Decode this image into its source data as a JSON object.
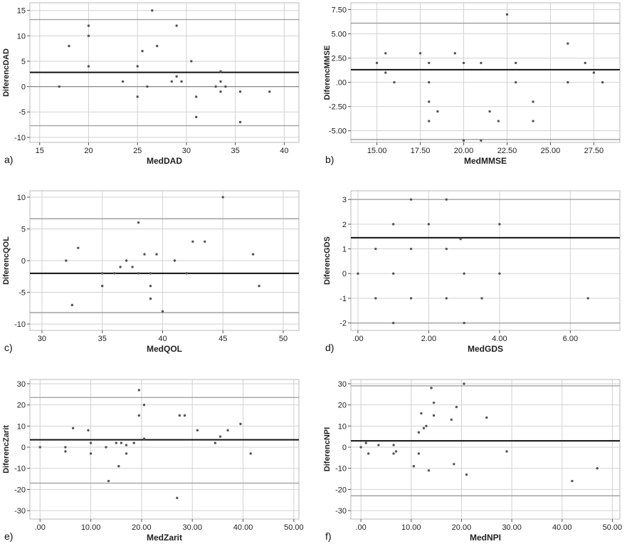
{
  "chart_data": [
    {
      "panel": "a)",
      "type": "scatter",
      "xlabel": "MedDAD",
      "ylabel": "DiferencDAD",
      "xlim": [
        14,
        41.5
      ],
      "ylim": [
        -11,
        16.5
      ],
      "xticks": [
        15,
        20,
        25,
        30,
        35,
        40
      ],
      "xtick_labels": [
        "15",
        "20",
        "25",
        "30",
        "35",
        "40"
      ],
      "yticks": [
        -10,
        -5,
        0,
        5,
        10,
        15
      ],
      "ytick_labels": [
        "-10",
        "-5",
        "0",
        "5",
        "10",
        "15"
      ],
      "zero_line": 0,
      "mean": 2.8,
      "loa_upper": 13.2,
      "loa_lower": -7.7,
      "points": [
        [
          17,
          0
        ],
        [
          18,
          8
        ],
        [
          20,
          12
        ],
        [
          20,
          10
        ],
        [
          20,
          4
        ],
        [
          23.5,
          1
        ],
        [
          25,
          4
        ],
        [
          25,
          -2
        ],
        [
          25.5,
          7
        ],
        [
          26,
          0
        ],
        [
          26.5,
          15
        ],
        [
          27,
          8
        ],
        [
          28.5,
          1
        ],
        [
          29,
          2
        ],
        [
          29,
          12
        ],
        [
          29.5,
          1
        ],
        [
          30.5,
          5
        ],
        [
          31,
          -2
        ],
        [
          31,
          -6
        ],
        [
          33,
          0
        ],
        [
          33.5,
          3
        ],
        [
          33.5,
          1
        ],
        [
          33.5,
          -1
        ],
        [
          34,
          0
        ],
        [
          35.5,
          -1
        ],
        [
          35.5,
          -7
        ],
        [
          38.5,
          -1
        ]
      ]
    },
    {
      "panel": "b)",
      "type": "scatter",
      "xlabel": "MedMMSE",
      "ylabel": "DiferencMMSE",
      "xlim": [
        13.5,
        29
      ],
      "ylim": [
        -6.2,
        8.2
      ],
      "xticks": [
        15,
        17.5,
        20,
        22.5,
        25,
        27.5
      ],
      "xtick_labels": [
        "15.00",
        "17.50",
        "20.00",
        "22.50",
        "25.00",
        "27.50"
      ],
      "yticks": [
        -5,
        -2.5,
        0,
        2.5,
        5,
        7.5
      ],
      "ytick_labels": [
        "-5.00",
        "-2.50",
        ".00",
        "2.50",
        "5.00",
        "7.50"
      ],
      "zero_line": null,
      "mean": 1.3,
      "loa_upper": 6.1,
      "loa_lower": -5.9,
      "points": [
        [
          15,
          2
        ],
        [
          15.5,
          3
        ],
        [
          15.5,
          1
        ],
        [
          16,
          0
        ],
        [
          17.5,
          3
        ],
        [
          18,
          2
        ],
        [
          18,
          0
        ],
        [
          18,
          -2
        ],
        [
          18,
          -4
        ],
        [
          18.5,
          -3
        ],
        [
          19.5,
          3
        ],
        [
          20,
          2
        ],
        [
          20,
          -6
        ],
        [
          21,
          2
        ],
        [
          21,
          -6
        ],
        [
          21.5,
          -3
        ],
        [
          22,
          -4
        ],
        [
          22.5,
          7
        ],
        [
          23,
          2
        ],
        [
          23,
          0
        ],
        [
          24,
          -2
        ],
        [
          24,
          -4
        ],
        [
          26,
          4
        ],
        [
          26,
          0
        ],
        [
          27,
          2
        ],
        [
          27.5,
          1
        ],
        [
          28,
          0
        ]
      ]
    },
    {
      "panel": "c)",
      "type": "scatter",
      "xlabel": "MedQOL",
      "ylabel": "DiferencQOL",
      "xlim": [
        29,
        51.3
      ],
      "ylim": [
        -11,
        11
      ],
      "xticks": [
        30,
        35,
        40,
        45,
        50
      ],
      "xtick_labels": [
        "30",
        "35",
        "40",
        "45",
        "50"
      ],
      "yticks": [
        -10,
        -5,
        0,
        5,
        10
      ],
      "ytick_labels": [
        "-10",
        "-5",
        "0",
        "5",
        "10"
      ],
      "zero_line": null,
      "mean": -2,
      "loa_upper": 6.6,
      "loa_lower": -8.2,
      "points": [
        [
          32,
          0
        ],
        [
          32.5,
          -7
        ],
        [
          33,
          2
        ],
        [
          35,
          -4
        ],
        [
          35,
          -2
        ],
        [
          36,
          -2
        ],
        [
          36.5,
          -1
        ],
        [
          37,
          0
        ],
        [
          37.5,
          -1
        ],
        [
          38,
          6
        ],
        [
          38,
          -2
        ],
        [
          38.5,
          1
        ],
        [
          39,
          -2
        ],
        [
          39,
          -4
        ],
        [
          39,
          -6
        ],
        [
          39.5,
          1
        ],
        [
          40,
          -8
        ],
        [
          41,
          0
        ],
        [
          42,
          -2
        ],
        [
          42.5,
          3
        ],
        [
          43.5,
          3
        ],
        [
          45,
          10
        ],
        [
          47.5,
          1
        ],
        [
          48,
          -4
        ]
      ]
    },
    {
      "panel": "d)",
      "type": "scatter",
      "xlabel": "MedGDS",
      "ylabel": "DiferencGDS",
      "xlim": [
        -0.2,
        7.4
      ],
      "ylim": [
        -2.3,
        3.35
      ],
      "xticks": [
        0,
        2,
        4,
        6
      ],
      "xtick_labels": [
        ".00",
        "2.00",
        "4.00",
        "6.00"
      ],
      "yticks": [
        -2,
        -1,
        0,
        1,
        2,
        3
      ],
      "ytick_labels": [
        "-2",
        "-1",
        "0",
        "1",
        "2",
        "3"
      ],
      "zero_line": null,
      "mean": 1.45,
      "loa_upper": 3,
      "loa_lower": -2,
      "points": [
        [
          0,
          0
        ],
        [
          0.5,
          1
        ],
        [
          0.5,
          -1
        ],
        [
          1,
          2
        ],
        [
          1,
          0
        ],
        [
          1,
          -2
        ],
        [
          1.5,
          3
        ],
        [
          1.5,
          1
        ],
        [
          1.5,
          -1
        ],
        [
          2,
          2
        ],
        [
          2.5,
          3
        ],
        [
          2.5,
          1
        ],
        [
          2.5,
          -1
        ],
        [
          2.9,
          1.4
        ],
        [
          3,
          0
        ],
        [
          3,
          -2
        ],
        [
          3.5,
          -1
        ],
        [
          4,
          2
        ],
        [
          4,
          0
        ],
        [
          6.5,
          -1
        ]
      ]
    },
    {
      "panel": "e)",
      "type": "scatter",
      "xlabel": "MedZarit",
      "ylabel": "DiferencZarit",
      "xlim": [
        -2,
        51
      ],
      "ylim": [
        -34,
        32
      ],
      "xticks": [
        0,
        10,
        20,
        30,
        40,
        50
      ],
      "xtick_labels": [
        ".00",
        "10.00",
        "20.00",
        "30.00",
        "40.00",
        "50.00"
      ],
      "yticks": [
        -30,
        -20,
        -10,
        0,
        10,
        20,
        30
      ],
      "ytick_labels": [
        "-30",
        "-20",
        "-10",
        "0",
        "10",
        "20",
        "30"
      ],
      "zero_line": null,
      "mean": 3.5,
      "loa_upper": 23.5,
      "loa_lower": -17,
      "points": [
        [
          0,
          0
        ],
        [
          5,
          0
        ],
        [
          5,
          -2
        ],
        [
          6.5,
          9
        ],
        [
          9.5,
          8
        ],
        [
          10,
          2
        ],
        [
          10,
          -3
        ],
        [
          13,
          0
        ],
        [
          13.5,
          -16
        ],
        [
          15,
          2
        ],
        [
          15.5,
          -9
        ],
        [
          16,
          2
        ],
        [
          17,
          1
        ],
        [
          17,
          -3
        ],
        [
          18.5,
          2
        ],
        [
          19.5,
          27
        ],
        [
          19.5,
          15
        ],
        [
          20.5,
          20
        ],
        [
          20.5,
          4
        ],
        [
          27,
          -24
        ],
        [
          27.5,
          15
        ],
        [
          28.5,
          15
        ],
        [
          31,
          8
        ],
        [
          34.5,
          2
        ],
        [
          35.5,
          5
        ],
        [
          37,
          8
        ],
        [
          39.5,
          11
        ],
        [
          41.5,
          -3
        ]
      ]
    },
    {
      "panel": "f)",
      "type": "scatter",
      "xlabel": "MedNPI",
      "ylabel": "DiferencNPI",
      "xlim": [
        -2,
        51.5
      ],
      "ylim": [
        -34,
        32
      ],
      "xticks": [
        0,
        10,
        20,
        30,
        40,
        50
      ],
      "xtick_labels": [
        ".00",
        "10.00",
        "20.00",
        "30.00",
        "40.00",
        "50.00"
      ],
      "yticks": [
        -30,
        -20,
        -10,
        0,
        10,
        20,
        30
      ],
      "ytick_labels": [
        "-30",
        "-20",
        "-10",
        "0",
        "10",
        "20",
        "30"
      ],
      "zero_line": null,
      "mean": 3,
      "loa_upper": 29,
      "loa_lower": -23,
      "points": [
        [
          0,
          0
        ],
        [
          1,
          2
        ],
        [
          1.5,
          -3
        ],
        [
          3.5,
          1
        ],
        [
          6.5,
          1
        ],
        [
          6.5,
          -3
        ],
        [
          7,
          -2
        ],
        [
          10.5,
          -9
        ],
        [
          11.5,
          7
        ],
        [
          11.5,
          -3
        ],
        [
          12,
          16
        ],
        [
          12.5,
          9
        ],
        [
          13,
          10
        ],
        [
          13.5,
          -11
        ],
        [
          14,
          28
        ],
        [
          14.5,
          21
        ],
        [
          14.5,
          15
        ],
        [
          18,
          13
        ],
        [
          18.5,
          -8
        ],
        [
          19,
          19
        ],
        [
          20.5,
          30
        ],
        [
          21,
          -13
        ],
        [
          25,
          14
        ],
        [
          29,
          -2
        ],
        [
          42,
          -16
        ],
        [
          47,
          -10
        ]
      ]
    }
  ]
}
